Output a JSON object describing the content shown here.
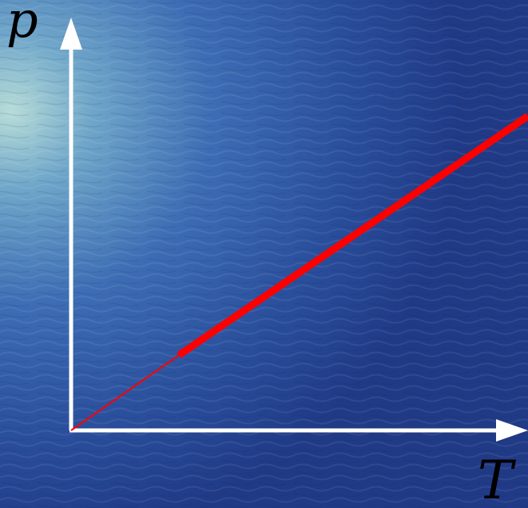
{
  "axes": {
    "y_label": "p",
    "x_label": "T"
  },
  "colors": {
    "axis": "#ffffff",
    "line": "#ff0000",
    "label": "#000000",
    "background_light": "#9fc9d2",
    "background_mid": "#3a6db0",
    "background_dark": "#223a86"
  }
}
